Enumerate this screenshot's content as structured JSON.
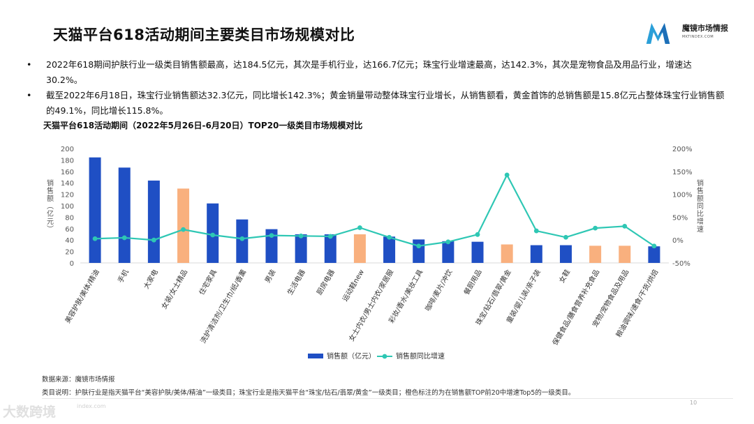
{
  "title": "天猫平台618活动期间主要类目市场规模对比",
  "logo": {
    "name": "魔镜市场情报",
    "url": "MKTINDEX.COM"
  },
  "bullets": [
    {
      "marker": "•",
      "text": "2022年618期间护肤行业一级类目销售额最高，达184.5亿元，其次是手机行业，达166.7亿元；珠宝行业增速最高，达142.3%，其次是宠物食品及用品行业，增速达30.2%。"
    },
    {
      "marker": "•",
      "text": "截至2022年6月18日，珠宝行业销售额达32.3亿元，同比增长142.3%；黄金销量带动整体珠宝行业增长，从销售额看，黄金首饰的总销售额是15.8亿元占整体珠宝行业销售额的49.1%，同比增长115.8%。"
    }
  ],
  "chart_title": "天猫平台618活动期间（2022年5月26日-6月20日）TOP20一级类目市场规模对比",
  "colors": {
    "bar": "#1f4fc4",
    "highlight": "#f9b07e",
    "line": "#2ec7b4"
  },
  "chart_data": {
    "type": "bar+line",
    "categories": [
      "美容护肤/美体/精油",
      "手机",
      "大家电",
      "女装/女士精品",
      "住宅家具",
      "洗护清洁剂/卫生巾/纸/香薰",
      "男装",
      "生活电器",
      "厨房电器",
      "运动鞋new",
      "女士内衣/男士内衣/家居服",
      "彩妆/香水/美妆工具",
      "咖啡/麦片/冲饮",
      "餐厨用品",
      "珠宝/钻石/翡翠/黄金",
      "童装/婴儿装/亲子装",
      "女鞋",
      "保健食品/膳食营养补充食品",
      "宠物/宠物食品及用品",
      "粮油调味/速食/干货/烘焙"
    ],
    "series": [
      {
        "name": "销售额（亿元）",
        "type": "bar",
        "axis": "left",
        "values": [
          184.5,
          166.7,
          144,
          130,
          104,
          76,
          59,
          50,
          50,
          50,
          46,
          41,
          38,
          37,
          32.3,
          31,
          31,
          30,
          30,
          29
        ],
        "highlight": [
          false,
          false,
          false,
          true,
          false,
          false,
          false,
          false,
          false,
          true,
          false,
          false,
          false,
          false,
          true,
          false,
          false,
          true,
          true,
          false
        ]
      },
      {
        "name": "销售额同比增速",
        "type": "line",
        "axis": "right",
        "values": [
          3,
          5,
          0,
          23,
          11,
          3,
          10,
          9,
          8,
          27,
          6,
          -13,
          -4,
          12,
          142.3,
          20,
          6,
          26,
          30.2,
          -13
        ]
      }
    ],
    "left_axis": {
      "label": "销售额（亿元）",
      "min": 0,
      "max": 200,
      "ticks": [
        "0",
        "20",
        "40",
        "60",
        "80",
        "100",
        "120",
        "140",
        "160",
        "180",
        "200"
      ]
    },
    "right_axis": {
      "label": "销售额同比增速",
      "min": -50,
      "max": 200,
      "ticks": [
        "-50%",
        "0%",
        "50%",
        "100%",
        "150%",
        "200%"
      ]
    },
    "legend": {
      "position": "bottom",
      "items": [
        "销售额（亿元）",
        "销售额同比增速"
      ]
    }
  },
  "notes": {
    "source": "数据来源：魔镜市场情报",
    "explain": "类目说明：护肤行业是指天猫平台“美容护肤/美体/精油”一级类目；珠宝行业是指天猫平台“珠宝/钻石/翡翠/黄金”一级类目；橙色标注的为在销售额TOP前20中增速Top5的一级类目。"
  },
  "page_number": "10",
  "watermark": "大数跨境",
  "footer_url": "index.com"
}
